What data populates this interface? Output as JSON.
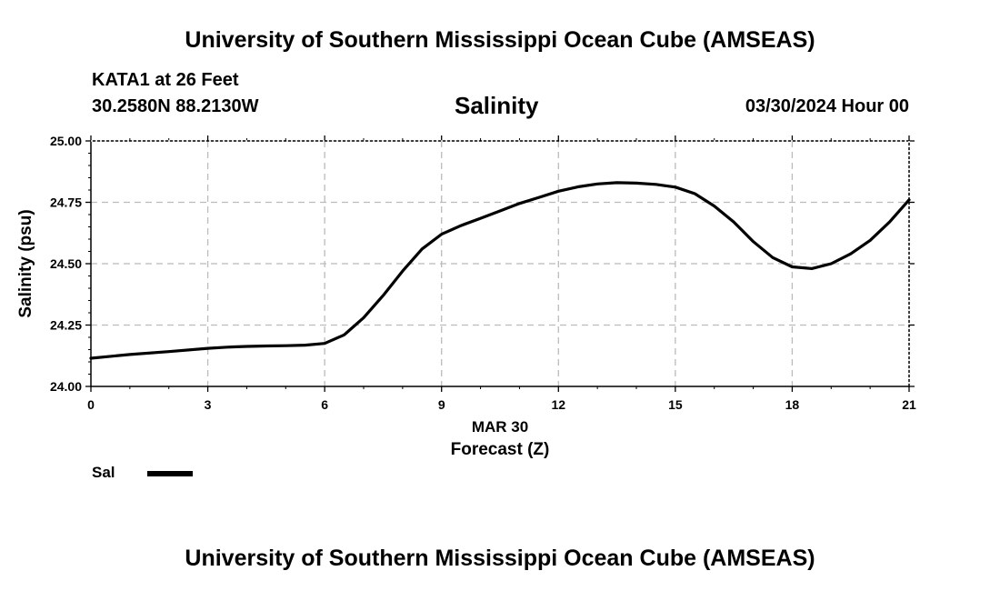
{
  "header": {
    "title": "University of Southern Mississippi Ocean Cube (AMSEAS)",
    "station": "KATA1 at 26 Feet",
    "coords": "30.2580N  88.2130W",
    "datetime": "03/30/2024 Hour 00"
  },
  "footer": {
    "title": "University of Southern Mississippi Ocean Cube (AMSEAS)"
  },
  "colors": {
    "line": "#000000",
    "grid": "#bbbbbb",
    "background": "#ffffff"
  },
  "chart_data": {
    "type": "line",
    "title": "Salinity",
    "xlabel": "Forecast (Z)",
    "xlabel_date": "MAR 30",
    "ylabel": "Salinity (psu)",
    "xlim": [
      0,
      21
    ],
    "ylim": [
      24.0,
      25.0
    ],
    "x_ticks": [
      0,
      3,
      6,
      9,
      12,
      15,
      18,
      21
    ],
    "x_tick_labels": [
      "0",
      "3",
      "6",
      "9",
      "12",
      "15",
      "18",
      "21"
    ],
    "y_ticks": [
      24.0,
      24.25,
      24.5,
      24.75,
      25.0
    ],
    "y_tick_labels": [
      "24.00",
      "24.25",
      "24.50",
      "24.75",
      "25.00"
    ],
    "grid": true,
    "legend": "bottom-left",
    "series": [
      {
        "name": "Sal",
        "x": [
          0,
          1,
          2,
          3,
          3.5,
          4,
          4.5,
          5,
          5.5,
          6,
          6.5,
          7,
          7.5,
          8,
          8.5,
          9,
          9.5,
          10,
          10.5,
          11,
          11.5,
          12,
          12.5,
          13,
          13.5,
          14,
          14.5,
          15,
          15.5,
          16,
          16.5,
          17,
          17.5,
          18,
          18.5,
          19,
          19.5,
          20,
          20.5,
          21
        ],
        "values": [
          24.115,
          24.13,
          24.142,
          24.155,
          24.16,
          24.163,
          24.165,
          24.166,
          24.168,
          24.175,
          24.21,
          24.28,
          24.37,
          24.47,
          24.56,
          24.62,
          24.655,
          24.685,
          24.715,
          24.745,
          24.77,
          24.795,
          24.813,
          24.825,
          24.83,
          24.828,
          24.823,
          24.812,
          24.785,
          24.735,
          24.67,
          24.59,
          24.525,
          24.487,
          24.48,
          24.5,
          24.54,
          24.595,
          24.67,
          24.76
        ]
      }
    ]
  }
}
